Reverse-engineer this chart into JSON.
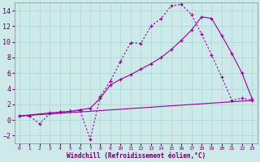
{
  "xlabel": "Windchill (Refroidissement éolien,°C)",
  "bg_color": "#cde9e9",
  "line_color": "#990099",
  "xlim": [
    0,
    23
  ],
  "ylim": [
    -3,
    15
  ],
  "xticks": [
    0,
    1,
    2,
    3,
    4,
    5,
    6,
    7,
    8,
    9,
    10,
    11,
    12,
    13,
    14,
    15,
    16,
    17,
    18,
    19,
    20,
    21,
    22,
    23
  ],
  "yticks": [
    -2,
    0,
    2,
    4,
    6,
    8,
    10,
    12,
    14
  ],
  "grid_color": "#a8d8d8",
  "line1_x": [
    0,
    1,
    2,
    3,
    4,
    5,
    6,
    7,
    8,
    9,
    10,
    11,
    12,
    13,
    14,
    15,
    16,
    17,
    18,
    19,
    20,
    21,
    22,
    23
  ],
  "line1_y": [
    0.5,
    0.5,
    -0.5,
    0.8,
    1.0,
    1.1,
    1.2,
    -2.5,
    3.0,
    5.0,
    7.5,
    9.9,
    9.8,
    12.0,
    13.0,
    14.6,
    14.8,
    13.5,
    11.0,
    8.3,
    5.5,
    2.5,
    2.8,
    2.5
  ],
  "line2_x": [
    0,
    3,
    4,
    5,
    6,
    7,
    8,
    9,
    10,
    11,
    12,
    13,
    14,
    15,
    16,
    17,
    18,
    19,
    20,
    21,
    22,
    23
  ],
  "line2_y": [
    0.5,
    0.9,
    1.0,
    1.1,
    1.3,
    1.5,
    2.8,
    4.5,
    5.2,
    5.8,
    6.5,
    7.2,
    8.0,
    9.0,
    10.2,
    11.5,
    13.2,
    13.0,
    10.8,
    8.5,
    6.0,
    2.7
  ],
  "line3_x": [
    0,
    23
  ],
  "line3_y": [
    0.5,
    2.5
  ]
}
